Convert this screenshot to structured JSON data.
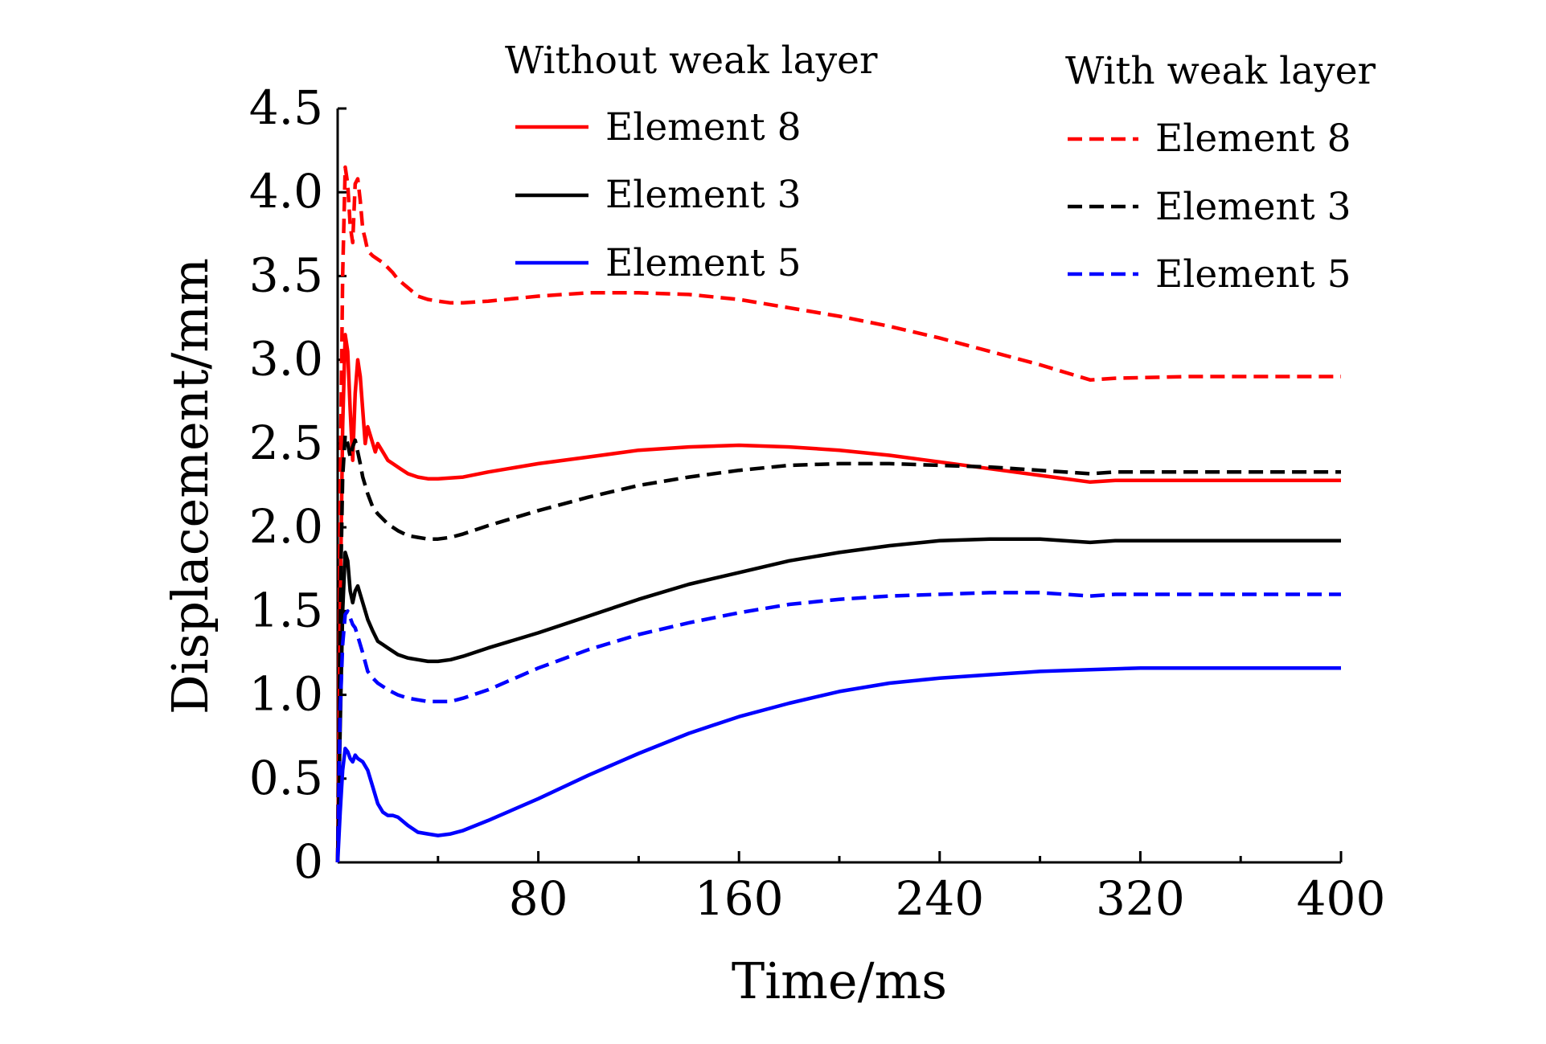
{
  "chart_data": {
    "type": "line",
    "title": "",
    "xlabel": "Time/ms",
    "ylabel": "Displacement/mm",
    "xlim": [
      0,
      400
    ],
    "ylim": [
      0,
      4.5
    ],
    "xticks": [
      80,
      160,
      240,
      320,
      400
    ],
    "xtick_labels": [
      "80",
      "160",
      "240",
      "320",
      "400"
    ],
    "xminor": [
      40,
      120,
      200,
      280,
      360
    ],
    "yticks": [
      0,
      0.5,
      1.0,
      1.5,
      2.0,
      2.5,
      3.0,
      3.5,
      4.0,
      4.5
    ],
    "ytick_labels": [
      "0",
      "0.5",
      "1.0",
      "1.5",
      "2.0",
      "2.5",
      "3.0",
      "3.5",
      "4.0",
      "4.5"
    ],
    "grid": false,
    "legend_groups": [
      {
        "title": "Without weak layer",
        "position": "top-center",
        "style": "solid",
        "entries": [
          "Element 8",
          "Element 3",
          "Element 5"
        ]
      },
      {
        "title": "With weak layer",
        "position": "top-right",
        "style": "dashed",
        "entries": [
          "Element 8",
          "Element 3",
          "Element 5"
        ]
      }
    ],
    "series": [
      {
        "name": "Element 8",
        "group": "Without weak layer",
        "color": "#ff0000",
        "dash": "solid",
        "x": [
          0,
          1,
          2,
          3,
          4,
          5,
          6,
          7,
          8,
          9,
          10,
          11,
          12,
          13,
          14,
          15,
          16,
          18,
          20,
          22,
          25,
          28,
          32,
          36,
          40,
          50,
          60,
          80,
          100,
          120,
          140,
          160,
          180,
          200,
          220,
          240,
          260,
          280,
          300,
          310,
          340,
          370,
          400
        ],
        "y": [
          0,
          1.5,
          2.6,
          3.15,
          3.05,
          2.7,
          2.4,
          2.8,
          3.0,
          2.9,
          2.7,
          2.5,
          2.6,
          2.55,
          2.5,
          2.45,
          2.5,
          2.45,
          2.4,
          2.38,
          2.35,
          2.32,
          2.3,
          2.29,
          2.29,
          2.3,
          2.33,
          2.38,
          2.42,
          2.46,
          2.48,
          2.49,
          2.48,
          2.46,
          2.43,
          2.39,
          2.35,
          2.31,
          2.27,
          2.28,
          2.28,
          2.28,
          2.28
        ]
      },
      {
        "name": "Element 3",
        "group": "Without weak layer",
        "color": "#000000",
        "dash": "solid",
        "x": [
          0,
          1,
          2,
          3,
          4,
          5,
          6,
          7,
          8,
          9,
          10,
          11,
          12,
          14,
          16,
          18,
          20,
          24,
          28,
          32,
          36,
          40,
          45,
          50,
          60,
          80,
          100,
          120,
          140,
          160,
          180,
          200,
          220,
          240,
          260,
          280,
          300,
          310,
          340,
          370,
          400
        ],
        "y": [
          0,
          0.8,
          1.5,
          1.85,
          1.8,
          1.62,
          1.55,
          1.62,
          1.65,
          1.6,
          1.55,
          1.5,
          1.45,
          1.38,
          1.32,
          1.3,
          1.28,
          1.24,
          1.22,
          1.21,
          1.2,
          1.2,
          1.21,
          1.23,
          1.28,
          1.37,
          1.47,
          1.57,
          1.66,
          1.73,
          1.8,
          1.85,
          1.89,
          1.92,
          1.93,
          1.93,
          1.91,
          1.92,
          1.92,
          1.92,
          1.92
        ]
      },
      {
        "name": "Element 5",
        "group": "Without weak layer",
        "color": "#0000ff",
        "dash": "solid",
        "x": [
          0,
          1,
          2,
          3,
          4,
          5,
          6,
          7,
          8,
          10,
          12,
          14,
          16,
          18,
          20,
          22,
          24,
          28,
          32,
          36,
          40,
          45,
          50,
          60,
          80,
          100,
          120,
          140,
          160,
          180,
          200,
          220,
          240,
          260,
          280,
          300,
          320,
          340,
          370,
          400
        ],
        "y": [
          0,
          0.3,
          0.55,
          0.68,
          0.66,
          0.62,
          0.6,
          0.64,
          0.62,
          0.6,
          0.55,
          0.45,
          0.35,
          0.3,
          0.28,
          0.28,
          0.27,
          0.22,
          0.18,
          0.17,
          0.16,
          0.17,
          0.19,
          0.25,
          0.38,
          0.52,
          0.65,
          0.77,
          0.87,
          0.95,
          1.02,
          1.07,
          1.1,
          1.12,
          1.14,
          1.15,
          1.16,
          1.16,
          1.16,
          1.16
        ]
      },
      {
        "name": "Element 8",
        "group": "With weak layer",
        "color": "#ff0000",
        "dash": "dashed",
        "x": [
          0,
          1,
          2,
          3,
          4,
          5,
          6,
          7,
          8,
          9,
          10,
          11,
          12,
          14,
          16,
          18,
          20,
          22,
          24,
          28,
          32,
          36,
          40,
          45,
          50,
          60,
          80,
          100,
          120,
          140,
          160,
          180,
          200,
          220,
          240,
          260,
          280,
          300,
          310,
          340,
          370,
          400
        ],
        "y": [
          0,
          2.2,
          3.5,
          4.15,
          4.05,
          3.8,
          3.7,
          4.05,
          4.08,
          3.95,
          3.78,
          3.72,
          3.65,
          3.62,
          3.6,
          3.58,
          3.55,
          3.52,
          3.48,
          3.43,
          3.38,
          3.36,
          3.35,
          3.34,
          3.34,
          3.35,
          3.38,
          3.4,
          3.4,
          3.39,
          3.36,
          3.31,
          3.26,
          3.2,
          3.13,
          3.05,
          2.97,
          2.88,
          2.89,
          2.9,
          2.9,
          2.9
        ]
      },
      {
        "name": "Element 3",
        "group": "With weak layer",
        "color": "#000000",
        "dash": "dashed",
        "x": [
          0,
          1,
          2,
          3,
          4,
          5,
          6,
          7,
          8,
          9,
          10,
          12,
          14,
          16,
          18,
          20,
          24,
          28,
          32,
          36,
          40,
          45,
          50,
          60,
          80,
          100,
          120,
          140,
          160,
          180,
          200,
          220,
          240,
          260,
          280,
          300,
          310,
          340,
          370,
          400
        ],
        "y": [
          0,
          1.5,
          2.3,
          2.55,
          2.5,
          2.42,
          2.48,
          2.52,
          2.45,
          2.38,
          2.3,
          2.2,
          2.12,
          2.08,
          2.05,
          2.02,
          1.98,
          1.95,
          1.94,
          1.93,
          1.93,
          1.94,
          1.96,
          2.01,
          2.1,
          2.18,
          2.25,
          2.3,
          2.34,
          2.37,
          2.38,
          2.38,
          2.37,
          2.36,
          2.34,
          2.32,
          2.33,
          2.33,
          2.33,
          2.33
        ]
      },
      {
        "name": "Element 5",
        "group": "With weak layer",
        "color": "#0000ff",
        "dash": "dashed",
        "x": [
          0,
          1,
          2,
          3,
          4,
          5,
          6,
          7,
          8,
          10,
          12,
          14,
          16,
          18,
          20,
          24,
          28,
          32,
          36,
          40,
          45,
          50,
          60,
          80,
          100,
          120,
          140,
          160,
          180,
          200,
          220,
          240,
          260,
          280,
          300,
          310,
          340,
          370,
          400
        ],
        "y": [
          0,
          0.9,
          1.3,
          1.48,
          1.5,
          1.46,
          1.42,
          1.4,
          1.35,
          1.25,
          1.14,
          1.1,
          1.07,
          1.05,
          1.03,
          1.0,
          0.98,
          0.97,
          0.96,
          0.96,
          0.96,
          0.98,
          1.03,
          1.16,
          1.27,
          1.36,
          1.43,
          1.49,
          1.54,
          1.57,
          1.59,
          1.6,
          1.61,
          1.61,
          1.59,
          1.6,
          1.6,
          1.6,
          1.6
        ]
      }
    ]
  }
}
